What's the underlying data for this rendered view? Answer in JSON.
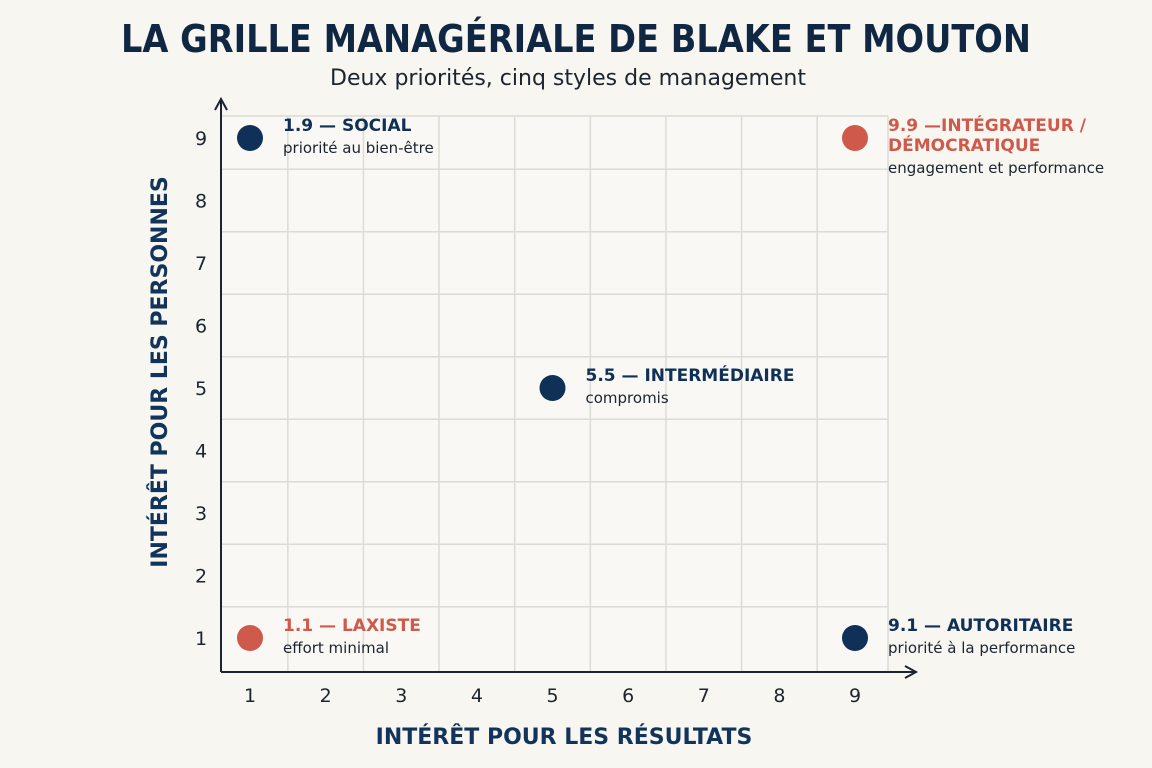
{
  "chart_data": {
    "type": "scatter",
    "title": "LA GRILLE MANAGÉRIALE DE BLAKE ET MOUTON",
    "subtitle": "Deux priorités, cinq styles de management",
    "xlabel": "INTÉRÊT POUR LES RÉSULTATS",
    "ylabel": "INTÉRÊT POUR LES PERSONNES",
    "xlim": [
      1,
      9
    ],
    "ylim": [
      1,
      9
    ],
    "x_ticks": [
      "1",
      "2",
      "3",
      "4",
      "5",
      "6",
      "7",
      "8",
      "9"
    ],
    "y_ticks": [
      "1",
      "2",
      "3",
      "4",
      "5",
      "6",
      "7",
      "8",
      "9"
    ],
    "grid": true,
    "legend": "none",
    "colors": {
      "navy": "#0f3057",
      "red": "#cf5a4b",
      "title": "#0f2742"
    },
    "points": [
      {
        "x": 1,
        "y": 9,
        "title": "1.9 — SOCIAL",
        "title_lines": [
          "1.9 — SOCIAL"
        ],
        "description": "priorité au bien-être",
        "color": "navy"
      },
      {
        "x": 9,
        "y": 9,
        "title": "9.9 — INTÉGRATEUR / DÉMOCRATIQUE",
        "title_lines": [
          "9.9 —INTÉGRATEUR /",
          "DÉMOCRATIQUE"
        ],
        "description": "engagement et performance",
        "color": "red"
      },
      {
        "x": 5,
        "y": 5,
        "title": "5.5 — INTERMÉDIAIRE",
        "title_lines": [
          "5.5 — INTERMÉDIAIRE"
        ],
        "description": "compromis",
        "color": "navy"
      },
      {
        "x": 1,
        "y": 1,
        "title": "1.1 — LAXISTE",
        "title_lines": [
          "1.1 — LAXISTE"
        ],
        "description": "effort minimal",
        "color": "red"
      },
      {
        "x": 9,
        "y": 1,
        "title": "9.1 — AUTORITAIRE",
        "title_lines": [
          "9.1 — AUTORITAIRE"
        ],
        "description": "priorité à la performance",
        "color": "navy"
      }
    ]
  }
}
